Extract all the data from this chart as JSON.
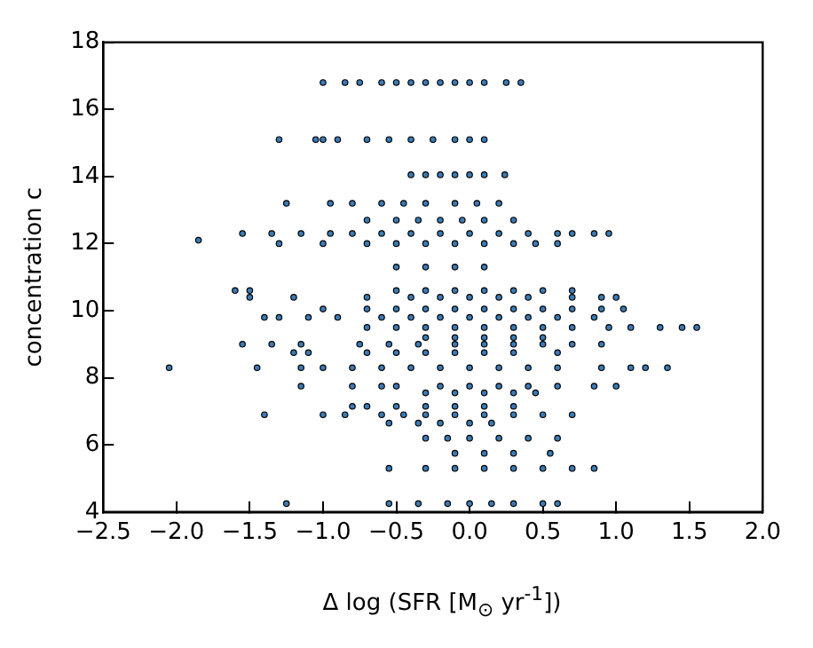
{
  "chart_data": {
    "type": "scatter",
    "xlabel": "Δ log (SFR [M$_{⊙}$ yr$^{-1}$])",
    "ylabel": "concentration c",
    "xlim": [
      -2.5,
      2.0
    ],
    "ylim": [
      4,
      18
    ],
    "xticks": [
      {
        "value": -2.5,
        "label": "−2.5"
      },
      {
        "value": -2.0,
        "label": "−2.0"
      },
      {
        "value": -1.5,
        "label": "−1.5"
      },
      {
        "value": -1.0,
        "label": "−1.0"
      },
      {
        "value": -0.5,
        "label": "−0.5"
      },
      {
        "value": 0,
        "label": "0.0"
      },
      {
        "value": 0.5,
        "label": "0.5"
      },
      {
        "value": 1.0,
        "label": "1.0"
      },
      {
        "value": 1.5,
        "label": "1.5"
      },
      {
        "value": 2.0,
        "label": "2.0"
      }
    ],
    "yticks": [
      4,
      6,
      8,
      10,
      12,
      14,
      16,
      18
    ],
    "grid": false,
    "marker": "circle",
    "series": [
      {
        "color": "#3b7bb5",
        "x": [
          -1.0,
          -0.85,
          -0.75,
          -0.6,
          -0.5,
          -0.4,
          -0.3,
          -0.2,
          -0.1,
          0,
          0.1,
          0.25,
          0.35,
          -1.3,
          -1.05,
          -1.0,
          -0.9,
          -0.7,
          -0.55,
          -0.4,
          -0.25,
          -0.1,
          0.0,
          0.1,
          -0.4,
          -0.3,
          -0.2,
          -0.1,
          0,
          0.1,
          0.24,
          -1.25,
          -0.95,
          -0.8,
          -0.6,
          -0.45,
          -0.3,
          -0.1,
          0.05,
          0.2,
          -0.7,
          -0.5,
          -0.35,
          -0.2,
          -0.05,
          0.1,
          0.3,
          -1.55,
          -1.35,
          -1.15,
          -0.95,
          -0.8,
          -0.6,
          -0.4,
          -0.2,
          0,
          0.2,
          0.4,
          0.6,
          0.7,
          0.85,
          0.95,
          -1.85,
          -1.3,
          -1.0,
          -0.7,
          -0.5,
          -0.3,
          -0.1,
          0.1,
          0.3,
          0.45,
          0.6,
          -0.5,
          -0.3,
          -0.1,
          0.1,
          -1.6,
          -1.5,
          -0.5,
          -0.3,
          -0.1,
          0.1,
          0.3,
          0.5,
          0.7,
          -1.5,
          -1.2,
          -0.7,
          -0.4,
          -0.2,
          0,
          0.2,
          0.4,
          0.7,
          0.9,
          1.0,
          -1.0,
          -0.7,
          -0.5,
          -0.3,
          -0.1,
          0.1,
          0.3,
          0.5,
          0.7,
          0.9,
          1.05,
          -1.4,
          -1.3,
          -1.1,
          -0.9,
          -0.6,
          -0.4,
          -0.2,
          0,
          0.2,
          0.4,
          0.6,
          0.85,
          -0.7,
          -0.5,
          -0.3,
          -0.1,
          0.1,
          0.3,
          0.5,
          0.7,
          0.95,
          1.1,
          1.3,
          1.45,
          1.55,
          -0.3,
          -0.1,
          0.1,
          0.3,
          0.5,
          -1.55,
          -1.35,
          -1.15,
          -0.75,
          -0.55,
          -0.35,
          -0.1,
          0.1,
          0.3,
          0.5,
          0.7,
          0.9,
          -1.2,
          -1.1,
          -0.7,
          -0.5,
          -0.3,
          -0.1,
          0.1,
          0.3,
          0.6,
          -2.05,
          -1.45,
          -1.15,
          -1.0,
          -0.8,
          -0.6,
          -0.4,
          -0.2,
          0,
          0.2,
          0.4,
          0.6,
          0.9,
          1.1,
          1.2,
          1.35,
          -1.15,
          -0.8,
          -0.6,
          -0.5,
          -0.2,
          0,
          0.2,
          0.4,
          0.6,
          0.85,
          1.0,
          -0.3,
          -0.1,
          0.1,
          0.3,
          0.45,
          -0.8,
          -0.7,
          -0.5,
          -0.3,
          -0.1,
          0.1,
          0.3,
          -1.4,
          -1.0,
          -0.85,
          -0.6,
          -0.45,
          -0.3,
          -0.1,
          0.1,
          0.3,
          0.5,
          0.7,
          -0.55,
          -0.35,
          -0.2,
          0,
          0.15,
          -0.3,
          -0.15,
          0,
          0.2,
          0.4,
          0.6,
          -0.1,
          0.1,
          0.3,
          0.55,
          -0.55,
          -0.3,
          -0.1,
          0.1,
          0.3,
          0.5,
          0.7,
          0.85,
          -1.25,
          -0.55,
          -0.35,
          -0.15,
          0,
          0.15,
          0.3,
          0.5,
          0.6
        ],
        "values": [
          16.8,
          16.8,
          16.8,
          16.8,
          16.8,
          16.8,
          16.8,
          16.8,
          16.8,
          16.8,
          16.8,
          16.8,
          16.8,
          15.1,
          15.1,
          15.1,
          15.1,
          15.1,
          15.1,
          15.1,
          15.1,
          15.1,
          15.1,
          15.1,
          14.05,
          14.05,
          14.05,
          14.05,
          14.05,
          14.05,
          14.05,
          13.2,
          13.2,
          13.2,
          13.2,
          13.2,
          13.2,
          13.2,
          13.2,
          13.2,
          12.7,
          12.7,
          12.7,
          12.7,
          12.7,
          12.7,
          12.7,
          12.3,
          12.3,
          12.3,
          12.3,
          12.3,
          12.3,
          12.3,
          12.3,
          12.3,
          12.3,
          12.3,
          12.3,
          12.3,
          12.3,
          12.3,
          12.1,
          12.0,
          12.0,
          12.0,
          12.0,
          12.0,
          12.0,
          12.0,
          12.0,
          12.0,
          12.0,
          11.3,
          11.3,
          11.3,
          11.3,
          10.6,
          10.6,
          10.6,
          10.6,
          10.6,
          10.6,
          10.6,
          10.6,
          10.6,
          10.4,
          10.4,
          10.4,
          10.4,
          10.4,
          10.4,
          10.4,
          10.4,
          10.4,
          10.4,
          10.4,
          10.05,
          10.05,
          10.05,
          10.05,
          10.05,
          10.05,
          10.05,
          10.05,
          10.05,
          10.05,
          10.05,
          9.8,
          9.8,
          9.8,
          9.8,
          9.8,
          9.8,
          9.8,
          9.8,
          9.8,
          9.8,
          9.8,
          9.8,
          9.5,
          9.5,
          9.5,
          9.5,
          9.5,
          9.5,
          9.5,
          9.5,
          9.5,
          9.5,
          9.5,
          9.5,
          9.5,
          9.2,
          9.2,
          9.2,
          9.2,
          9.2,
          9.0,
          9.0,
          9.0,
          9.0,
          9.0,
          9.0,
          9.0,
          9.0,
          9.0,
          9.0,
          9.0,
          9.0,
          8.75,
          8.75,
          8.75,
          8.75,
          8.75,
          8.75,
          8.75,
          8.75,
          8.75,
          8.3,
          8.3,
          8.3,
          8.3,
          8.3,
          8.3,
          8.3,
          8.3,
          8.3,
          8.3,
          8.3,
          8.3,
          8.3,
          8.3,
          8.3,
          8.3,
          7.75,
          7.75,
          7.75,
          7.75,
          7.75,
          7.75,
          7.75,
          7.75,
          7.75,
          7.75,
          7.75,
          7.55,
          7.55,
          7.55,
          7.55,
          7.55,
          7.15,
          7.15,
          7.15,
          7.15,
          7.15,
          7.15,
          7.15,
          6.9,
          6.9,
          6.9,
          6.9,
          6.9,
          6.9,
          6.9,
          6.9,
          6.9,
          6.9,
          6.9,
          6.65,
          6.65,
          6.65,
          6.65,
          6.65,
          6.2,
          6.2,
          6.2,
          6.2,
          6.2,
          6.2,
          5.75,
          5.75,
          5.75,
          5.75,
          5.3,
          5.3,
          5.3,
          5.3,
          5.3,
          5.3,
          5.3,
          5.3,
          4.25,
          4.25,
          4.25,
          4.25,
          4.25,
          4.25,
          4.25,
          4.25,
          4.25
        ]
      }
    ]
  }
}
